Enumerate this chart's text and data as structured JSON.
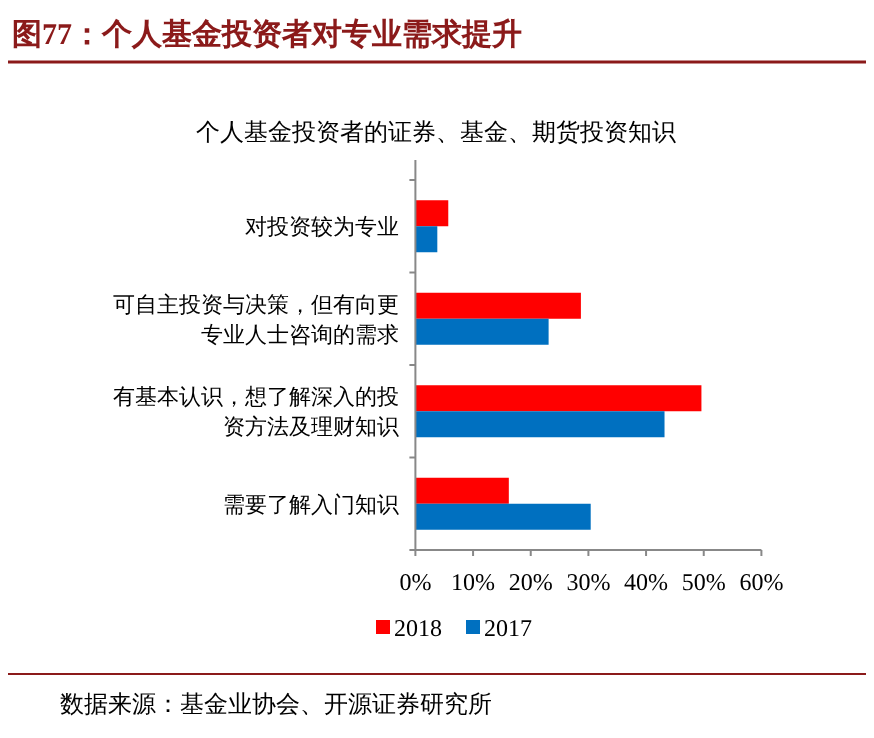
{
  "chart_data": {
    "type": "bar",
    "orientation": "horizontal",
    "title": "图77：个人基金投资者对专业需求提升",
    "subtitle": "个人基金投资者的证券、基金、期货投资知识",
    "categories": [
      "对投资较为专业",
      "可自主投资与决策，但有向更专业人士咨询的需求",
      "有基本认识，想了解深入的投资方法及理财知识",
      "需要了解入门知识"
    ],
    "series": [
      {
        "name": "2018",
        "color": "#ff0000",
        "values": [
          5.7,
          28.7,
          49.6,
          16.2
        ]
      },
      {
        "name": "2017",
        "color": "#0070c0",
        "values": [
          3.8,
          23.1,
          43.2,
          30.4
        ]
      }
    ],
    "xlim": [
      0,
      60
    ],
    "xticks": [
      {
        "value": 0,
        "label": "0%"
      },
      {
        "value": 10,
        "label": "10%"
      },
      {
        "value": 20,
        "label": "20%"
      },
      {
        "value": 30,
        "label": "30%"
      },
      {
        "value": 40,
        "label": "40%"
      },
      {
        "value": 50,
        "label": "50%"
      },
      {
        "value": 60,
        "label": "60%"
      }
    ],
    "legend": "bottom",
    "grid": false,
    "annotations": [
      "数据来源：基金业协会、开源证券研究所"
    ]
  }
}
